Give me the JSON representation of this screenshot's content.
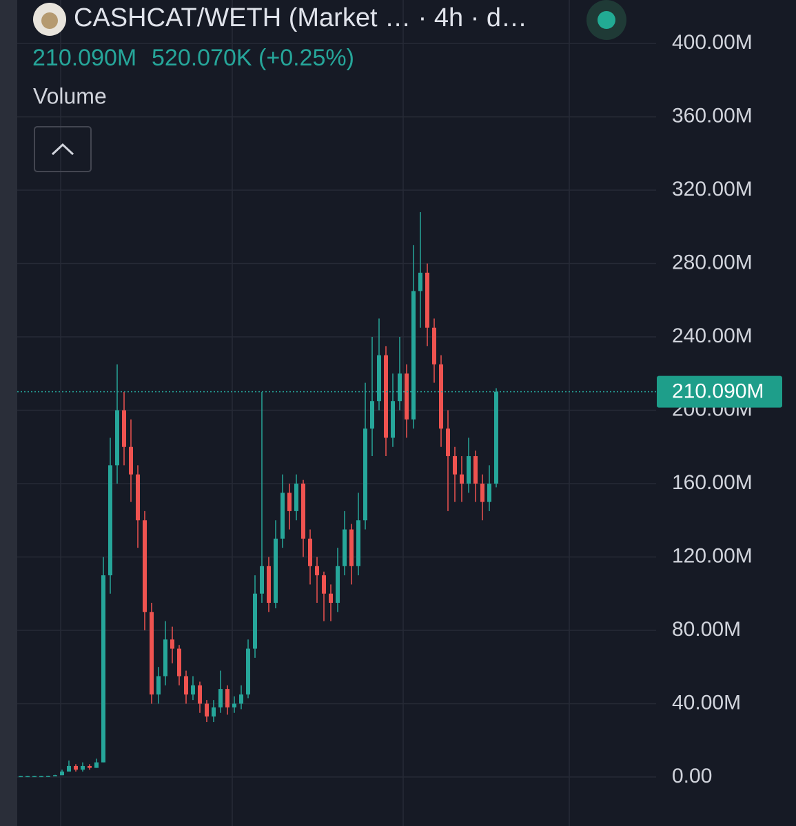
{
  "chart_data": {
    "type": "candlestick",
    "title": "CASHCAT/WETH (Market … · 4h · d…",
    "price": "210.090M",
    "change": "520.070K (+0.25%)",
    "indicator": "Volume",
    "up_color": "#26a69a",
    "down_color": "#ef5350",
    "grid": true,
    "ylim": [
      -26.7,
      423.7
    ],
    "yticks": [
      {
        "value": 0,
        "label": "0.00"
      },
      {
        "value": 40,
        "label": "40.00M"
      },
      {
        "value": 80,
        "label": "80.00M"
      },
      {
        "value": 120,
        "label": "120.00M"
      },
      {
        "value": 160,
        "label": "160.00M"
      },
      {
        "value": 200,
        "label": "200.00M"
      },
      {
        "value": 240,
        "label": "240.00M"
      },
      {
        "value": 280,
        "label": "280.00M"
      },
      {
        "value": 320,
        "label": "320.00M"
      },
      {
        "value": 360,
        "label": "360.00M"
      },
      {
        "value": 400,
        "label": "400.00M"
      }
    ],
    "last_price": {
      "value": 210.09,
      "label": "210.090M"
    },
    "open": [
      0.5,
      0.5,
      0.5,
      0.5,
      0.5,
      0.6,
      1,
      3,
      6,
      4,
      6,
      5,
      8,
      110,
      170,
      200,
      180,
      165,
      140,
      90,
      45,
      55,
      75,
      70,
      55,
      45,
      50,
      40,
      33,
      38,
      48,
      38,
      40,
      45,
      70,
      100,
      115,
      95,
      130,
      155,
      145,
      160,
      130,
      115,
      110,
      100,
      95,
      115,
      135,
      115,
      140,
      190,
      205,
      230,
      185,
      205,
      220,
      195,
      265,
      275,
      245,
      225,
      190,
      175,
      165,
      160,
      175,
      160,
      150,
      160
    ],
    "high": [
      0.6,
      0.6,
      0.6,
      0.6,
      0.7,
      1.2,
      4,
      9,
      7,
      8,
      7,
      10,
      120,
      185,
      225,
      210,
      195,
      170,
      145,
      95,
      60,
      85,
      82,
      72,
      58,
      55,
      52,
      42,
      42,
      58,
      50,
      44,
      50,
      75,
      110,
      210,
      120,
      140,
      165,
      160,
      165,
      162,
      135,
      120,
      112,
      105,
      125,
      145,
      138,
      155,
      215,
      240,
      250,
      235,
      220,
      240,
      225,
      290,
      308,
      280,
      250,
      230,
      200,
      180,
      175,
      185,
      178,
      165,
      170,
      212
    ],
    "low": [
      0.4,
      0.4,
      0.4,
      0.4,
      0.4,
      0.5,
      1,
      3,
      3,
      3,
      4,
      5,
      8,
      100,
      160,
      170,
      150,
      125,
      80,
      40,
      40,
      50,
      62,
      50,
      40,
      42,
      35,
      30,
      30,
      35,
      34,
      35,
      37,
      43,
      65,
      95,
      90,
      92,
      125,
      135,
      140,
      120,
      105,
      95,
      85,
      85,
      90,
      110,
      105,
      110,
      135,
      175,
      200,
      175,
      180,
      200,
      185,
      190,
      245,
      235,
      215,
      180,
      145,
      150,
      150,
      155,
      150,
      140,
      145,
      158
    ],
    "close": [
      0.5,
      0.5,
      0.5,
      0.5,
      0.6,
      1,
      3,
      6,
      4,
      6,
      5,
      8,
      110,
      170,
      200,
      180,
      165,
      140,
      90,
      45,
      55,
      75,
      70,
      55,
      45,
      50,
      40,
      33,
      38,
      48,
      38,
      40,
      45,
      70,
      100,
      115,
      95,
      130,
      155,
      145,
      160,
      130,
      115,
      110,
      100,
      95,
      115,
      135,
      115,
      140,
      190,
      205,
      230,
      185,
      205,
      220,
      195,
      265,
      275,
      245,
      225,
      190,
      175,
      165,
      160,
      175,
      160,
      150,
      160,
      210.09
    ]
  }
}
